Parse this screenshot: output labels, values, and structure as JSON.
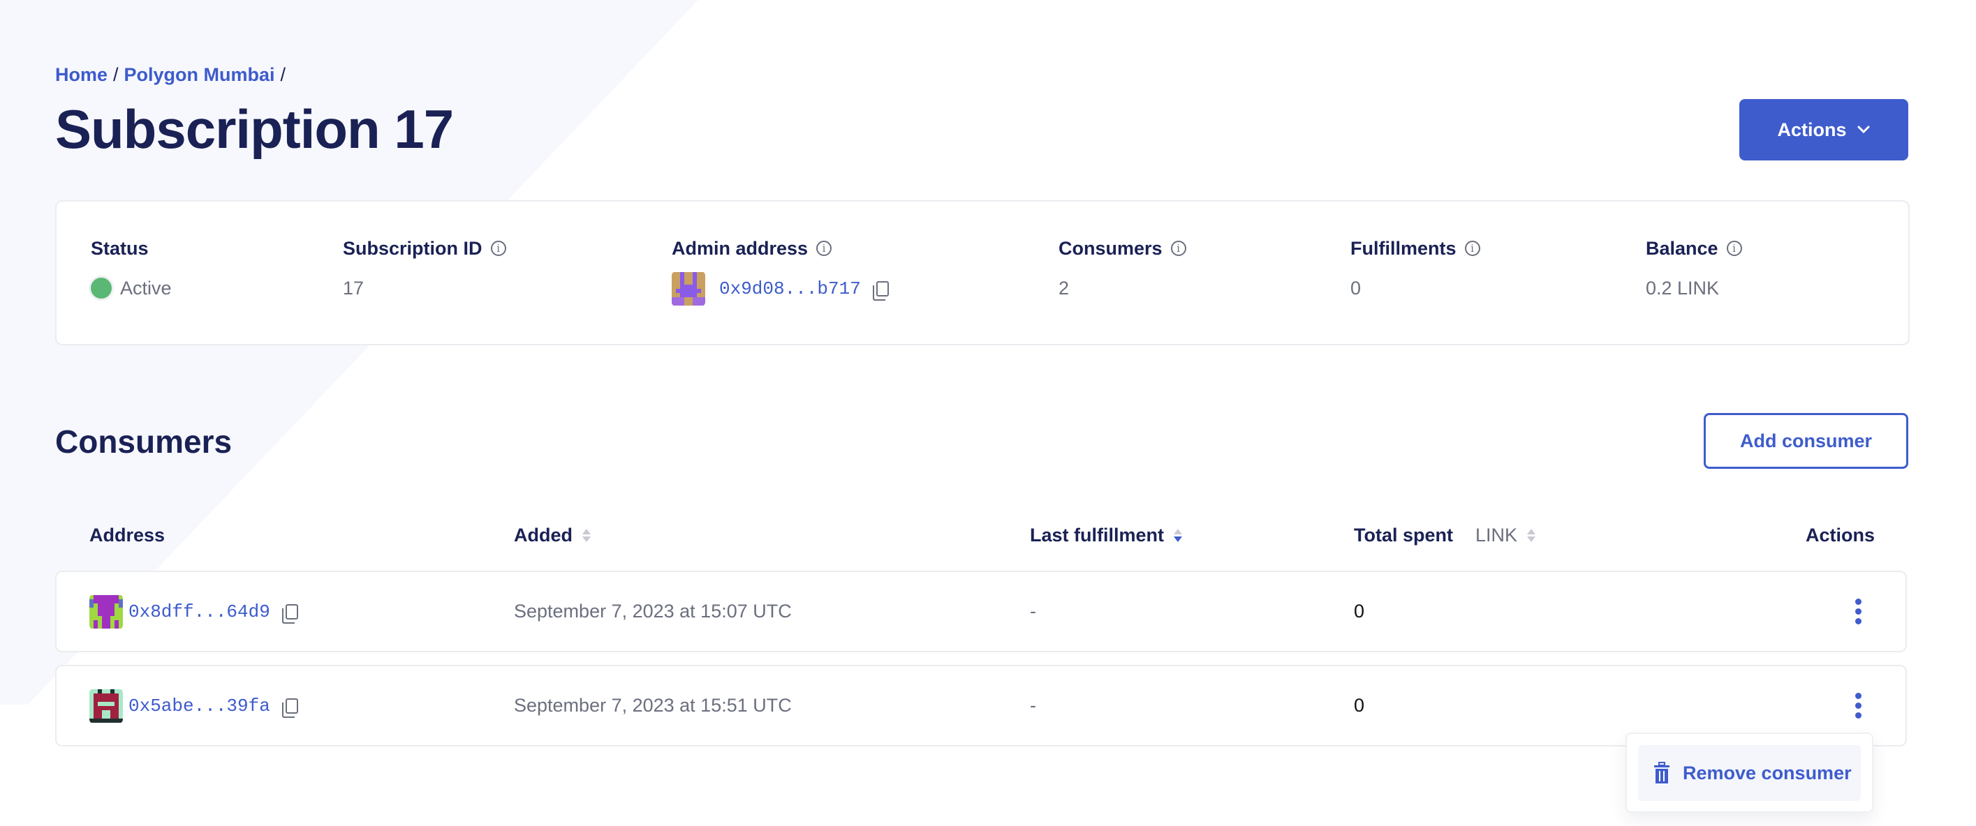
{
  "breadcrumb": [
    {
      "label": "Home"
    },
    {
      "label": "Polygon Mumbai"
    }
  ],
  "breadcrumb_sep": "/",
  "page_title": "Subscription 17",
  "actions_button": {
    "label": "Actions",
    "icon": "chevron-down-icon"
  },
  "summary": {
    "status": {
      "label": "Status",
      "value": "Active",
      "color": "#5bb774"
    },
    "subscription_id": {
      "label": "Subscription ID",
      "value": "17"
    },
    "admin_address": {
      "label": "Admin address",
      "value": "0x9d08...b717"
    },
    "consumers": {
      "label": "Consumers",
      "value": "2"
    },
    "fulfillments": {
      "label": "Fulfillments",
      "value": "0"
    },
    "balance": {
      "label": "Balance",
      "value": "0.2 LINK"
    }
  },
  "consumers_section": {
    "title": "Consumers",
    "add_button": "Add consumer",
    "columns": {
      "address": "Address",
      "added": "Added",
      "last_fulfillment": "Last fulfillment",
      "total_spent": "Total spent",
      "total_spent_unit": "LINK",
      "actions": "Actions"
    },
    "rows": [
      {
        "address": "0x8dff...64d9",
        "added": "September 7, 2023 at 15:07 UTC",
        "last_fulfillment": "-",
        "total_spent": "0"
      },
      {
        "address": "0x5abe...39fa",
        "added": "September 7, 2023 at 15:51 UTC",
        "last_fulfillment": "-",
        "total_spent": "0"
      }
    ],
    "row_menu": {
      "item": "Remove consumer",
      "icon": "trash-icon"
    }
  },
  "colors": {
    "accent": "#3e5ccc",
    "heading": "#1a2155",
    "muted": "#6b6f7e"
  }
}
